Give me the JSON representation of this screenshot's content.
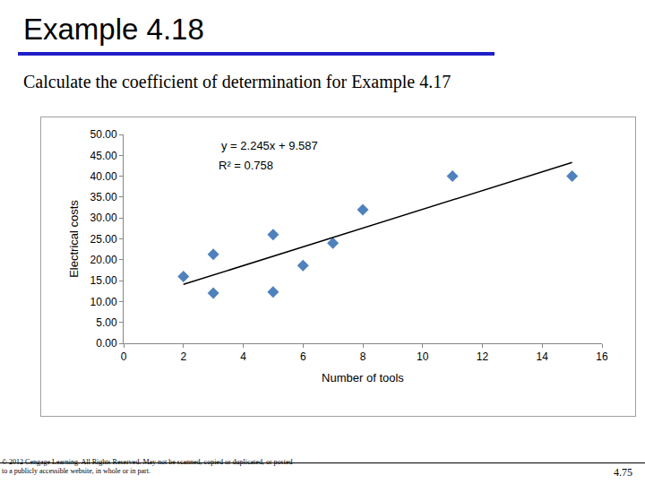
{
  "chart_data": {
    "type": "scatter",
    "title": "Example 4.18",
    "subtitle": "Calculate the coefficient of determination for Example 4.17",
    "x_label": "Number of tools",
    "y_label": "Electrical costs",
    "series": [
      {
        "type": "scatter",
        "marker": "diamond",
        "color": "#4f81bd",
        "x": [
          2,
          3,
          3,
          5,
          5,
          6,
          7,
          8,
          11,
          15
        ],
        "values": [
          16,
          21.3,
          12,
          26,
          12.3,
          18.6,
          24,
          32,
          40,
          40
        ]
      },
      {
        "type": "line",
        "line_style": "solid",
        "color": "#000000",
        "x": [
          2,
          15
        ],
        "values": [
          14.1,
          43.3
        ]
      }
    ],
    "annotations": [
      "y = 2.245x + 9.587",
      "R² = 0.758"
    ],
    "xlim": [
      0,
      16
    ],
    "xticks": [
      0,
      2,
      4,
      6,
      8,
      10,
      12,
      14,
      16
    ],
    "ylim": [
      0,
      50
    ],
    "yticks": [
      {
        "value": 0,
        "label": "0.00"
      },
      {
        "value": 5,
        "label": "5.00"
      },
      {
        "value": 10,
        "label": "10.00"
      },
      {
        "value": 15,
        "label": "15.00"
      },
      {
        "value": 20,
        "label": "20.00"
      },
      {
        "value": 25,
        "label": "25.00"
      },
      {
        "value": 30,
        "label": "30.00"
      },
      {
        "value": 35,
        "label": "35.00"
      },
      {
        "value": 40,
        "label": "40.00"
      },
      {
        "value": 45,
        "label": "45.00"
      },
      {
        "value": 50,
        "label": "50.00"
      }
    ],
    "grid": false
  },
  "footer": {
    "copyright": "© 2012 Cengage Learning. All Rights Reserved. May not be scanned, copied or duplicated, or posted to a publicly accessible website, in whole or in part.",
    "page": "4.75"
  }
}
